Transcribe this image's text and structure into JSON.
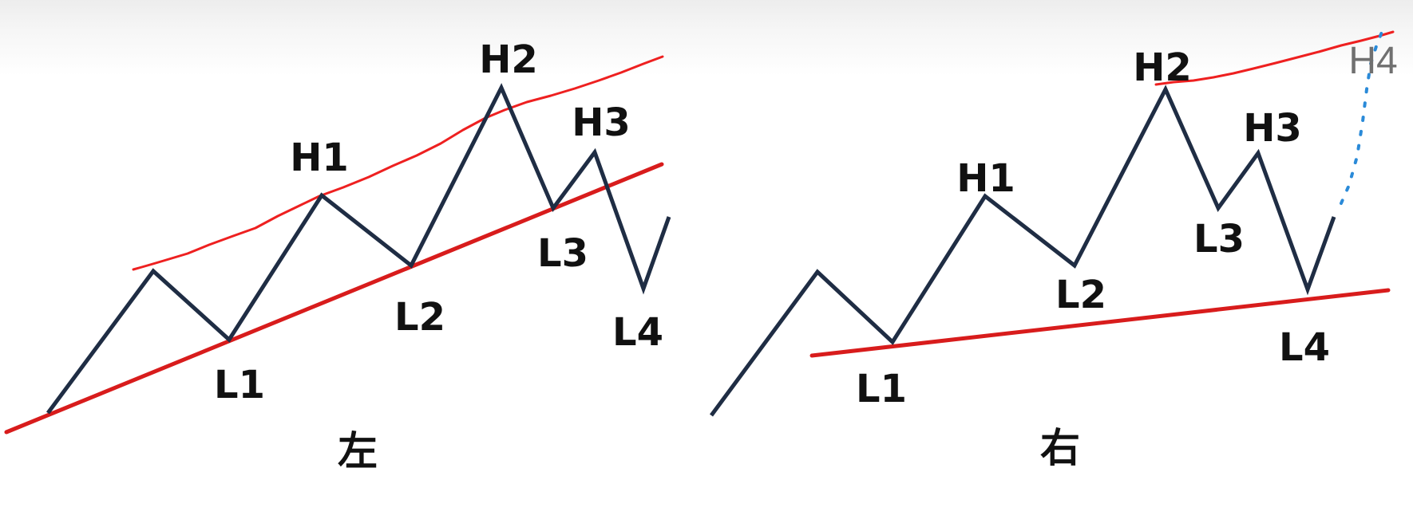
{
  "colors": {
    "price_line": "#1f2d44",
    "trend_line": "#d81c1c",
    "sketch_line": "#ee2020",
    "dotted_annotation": "#2a8ad8",
    "label_text": "#111111",
    "annotation_text": "#707070"
  },
  "left_panel": {
    "caption": "左",
    "labels": {
      "h1": "H1",
      "h2": "H2",
      "h3": "H3",
      "l1": "L1",
      "l2": "L2",
      "l3": "L3",
      "l4": "L4"
    }
  },
  "right_panel": {
    "caption": "右",
    "labels": {
      "h1": "H1",
      "h2": "H2",
      "h3": "H3",
      "l1": "L1",
      "l2": "L2",
      "l3": "L3",
      "l4": "L4"
    },
    "annotation": "H4"
  }
}
